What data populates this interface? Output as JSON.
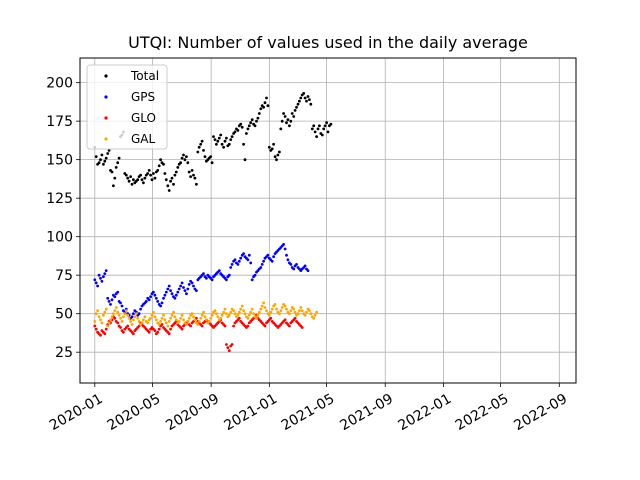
{
  "chart_data": {
    "type": "scatter",
    "title": "UTQI: Number of values used in the daily average",
    "xlabel": "",
    "ylabel": "",
    "x_type": "date",
    "xlim": [
      "2019-12-01",
      "2022-10-06"
    ],
    "ylim": [
      5,
      216
    ],
    "grid": true,
    "legend_position": "top-left",
    "x_ticks": [
      "2020-01",
      "2020-05",
      "2020-09",
      "2021-01",
      "2021-05",
      "2021-09",
      "2022-01",
      "2022-05",
      "2022-09"
    ],
    "y_ticks": [
      25,
      50,
      75,
      100,
      125,
      150,
      175,
      200
    ],
    "sample_interval_days": 3,
    "series": [
      {
        "name": "Total",
        "color": "#000000",
        "x_start": "2020-01-01",
        "values": [
          158,
          152,
          147,
          148,
          150,
          153,
          147,
          149,
          151,
          154,
          156,
          143,
          142,
          133,
          138,
          145,
          148,
          151,
          165,
          166,
          168,
          141,
          140,
          138,
          136,
          139,
          134,
          137,
          135,
          136,
          137,
          139,
          140,
          137,
          135,
          138,
          140,
          141,
          143,
          140,
          137,
          141,
          138,
          142,
          143,
          146,
          150,
          148,
          147,
          141,
          137,
          133,
          130,
          136,
          138,
          134,
          140,
          142,
          145,
          147,
          148,
          151,
          153,
          150,
          152,
          148,
          142,
          139,
          143,
          140,
          138,
          134,
          155,
          158,
          160,
          162,
          156,
          152,
          149,
          150,
          151,
          152,
          148,
          165,
          163,
          160,
          162,
          164,
          166,
          160,
          158,
          162,
          164,
          159,
          160,
          163,
          165,
          167,
          168,
          170,
          169,
          172,
          173,
          171,
          160,
          150,
          167,
          170,
          172,
          174,
          176,
          173,
          172,
          175,
          177,
          180,
          183,
          185,
          184,
          187,
          190,
          185,
          158,
          156,
          157,
          160,
          152,
          150,
          153,
          155,
          170,
          175,
          180,
          178,
          174,
          176,
          172,
          175,
          180,
          178,
          182,
          184,
          186,
          188,
          190,
          192,
          193,
          190,
          188,
          191,
          189,
          186,
          170,
          172,
          168,
          165,
          170,
          172,
          167,
          166,
          170,
          172,
          174,
          168,
          172,
          173
        ]
      },
      {
        "name": "GPS",
        "color": "#0000ff",
        "x_start": "2020-01-01",
        "values": [
          72,
          70,
          68,
          75,
          73,
          71,
          74,
          76,
          78,
          60,
          58,
          56,
          59,
          62,
          61,
          63,
          64,
          58,
          57,
          55,
          52,
          51,
          53,
          50,
          49,
          47,
          48,
          50,
          52,
          51,
          49,
          50,
          53,
          55,
          56,
          57,
          58,
          60,
          59,
          61,
          63,
          64,
          62,
          60,
          58,
          56,
          55,
          57,
          60,
          62,
          64,
          66,
          68,
          65,
          63,
          61,
          60,
          62,
          64,
          66,
          68,
          70,
          67,
          65,
          63,
          66,
          69,
          71,
          70,
          68,
          66,
          65,
          72,
          73,
          74,
          75,
          76,
          74,
          73,
          75,
          74,
          73,
          72,
          74,
          75,
          76,
          77,
          78,
          76,
          75,
          74,
          73,
          72,
          74,
          75,
          80,
          82,
          84,
          85,
          83,
          82,
          84,
          86,
          88,
          89,
          87,
          86,
          85,
          88,
          83,
          72,
          74,
          75,
          77,
          78,
          79,
          80,
          82,
          84,
          86,
          87,
          88,
          86,
          85,
          84,
          87,
          89,
          90,
          91,
          92,
          93,
          94,
          95,
          92,
          88,
          85,
          83,
          82,
          80,
          79,
          81,
          82,
          80,
          79,
          78,
          79,
          80,
          81,
          79,
          78
        ]
      },
      {
        "name": "GLO",
        "color": "#ff0000",
        "x_start": "2020-01-01",
        "values": [
          42,
          40,
          38,
          37,
          36,
          39,
          38,
          37,
          40,
          43,
          45,
          44,
          46,
          48,
          47,
          45,
          44,
          42,
          41,
          39,
          38,
          40,
          41,
          42,
          40,
          39,
          38,
          37,
          39,
          40,
          41,
          42,
          44,
          43,
          42,
          41,
          40,
          39,
          38,
          40,
          41,
          40,
          39,
          37,
          38,
          40,
          42,
          43,
          41,
          40,
          39,
          38,
          37,
          40,
          42,
          43,
          44,
          45,
          43,
          42,
          41,
          40,
          42,
          43,
          44,
          45,
          43,
          42,
          44,
          45,
          46,
          47,
          45,
          44,
          43,
          42,
          44,
          45,
          46,
          45,
          44,
          43,
          42,
          41,
          42,
          43,
          44,
          45,
          46,
          44,
          43,
          42,
          30,
          28,
          26,
          29,
          30,
          42,
          44,
          45,
          46,
          47,
          45,
          44,
          43,
          42,
          41,
          42,
          44,
          45,
          46,
          47,
          48,
          49,
          47,
          46,
          45,
          44,
          43,
          42,
          44,
          45,
          46,
          47,
          45,
          44,
          43,
          42,
          41,
          42,
          43,
          44,
          45,
          46,
          44,
          43,
          42,
          44,
          45,
          46,
          47,
          45,
          44,
          43,
          42,
          41
        ]
      },
      {
        "name": "GAL",
        "color": "#ffa500",
        "x_start": "2020-01-01",
        "values": [
          45,
          50,
          52,
          48,
          46,
          44,
          49,
          51,
          53,
          42,
          44,
          46,
          48,
          50,
          52,
          54,
          51,
          49,
          47,
          45,
          48,
          50,
          52,
          49,
          47,
          45,
          43,
          46,
          48,
          50,
          47,
          45,
          43,
          44,
          46,
          48,
          45,
          44,
          46,
          47,
          49,
          51,
          48,
          46,
          44,
          43,
          45,
          47,
          49,
          46,
          44,
          42,
          45,
          47,
          49,
          51,
          48,
          46,
          44,
          45,
          47,
          49,
          46,
          44,
          43,
          45,
          47,
          49,
          50,
          48,
          46,
          44,
          43,
          45,
          47,
          49,
          51,
          48,
          46,
          44,
          45,
          47,
          49,
          51,
          52,
          50,
          48,
          46,
          47,
          49,
          51,
          53,
          50,
          48,
          49,
          51,
          53,
          52,
          50,
          48,
          49,
          51,
          53,
          55,
          52,
          50,
          48,
          47,
          49,
          51,
          53,
          50,
          48,
          47,
          49,
          51,
          53,
          55,
          57,
          54,
          52,
          50,
          49,
          51,
          53,
          55,
          56,
          53,
          51,
          50,
          52,
          54,
          56,
          55,
          53,
          51,
          50,
          52,
          54,
          53,
          51,
          49,
          50,
          52,
          54,
          52,
          50,
          49,
          51,
          53,
          52,
          50,
          48,
          47,
          49,
          51
        ]
      }
    ]
  }
}
